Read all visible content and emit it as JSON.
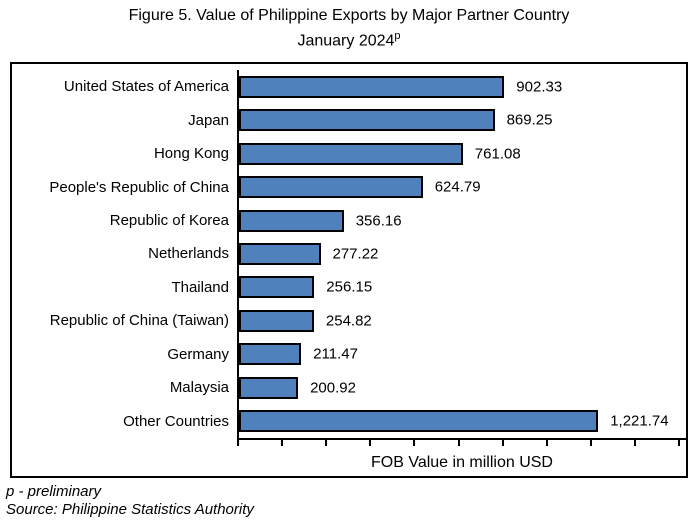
{
  "title": {
    "line1": "Figure 5. Value of Philippine Exports by Major Partner Country",
    "line2_text": "January 2024",
    "line2_sup": "p"
  },
  "chart_data": {
    "type": "bar",
    "orientation": "horizontal",
    "title": "Figure 5. Value of Philippine Exports by Major Partner Country January 2024p",
    "categories": [
      "United States of America",
      "Japan",
      "Hong Kong",
      "People's Republic of China",
      "Republic of Korea",
      "Netherlands",
      "Thailand",
      "Republic of China (Taiwan)",
      "Germany",
      "Malaysia",
      "Other Countries"
    ],
    "values": [
      902.33,
      869.25,
      761.08,
      624.79,
      356.16,
      277.22,
      256.15,
      254.82,
      211.47,
      200.92,
      1221.74
    ],
    "value_labels": [
      "902.33",
      "869.25",
      "761.08",
      "624.79",
      "356.16",
      "277.22",
      "256.15",
      "254.82",
      "211.47",
      "200.92",
      "1,221.74"
    ],
    "xlabel": "FOB Value in million USD",
    "ylabel": "",
    "xlim": [
      0,
      1500
    ],
    "tick_interval": 150,
    "tick_count": 11,
    "tick_labels_visible": false,
    "grid": false,
    "legend": false,
    "bar_color": "#4f81bd",
    "bar_border_color": "#000000",
    "frame_color": "#000000"
  },
  "footer": {
    "note": "p - preliminary",
    "source": "Source: Philippine Statistics Authority"
  }
}
